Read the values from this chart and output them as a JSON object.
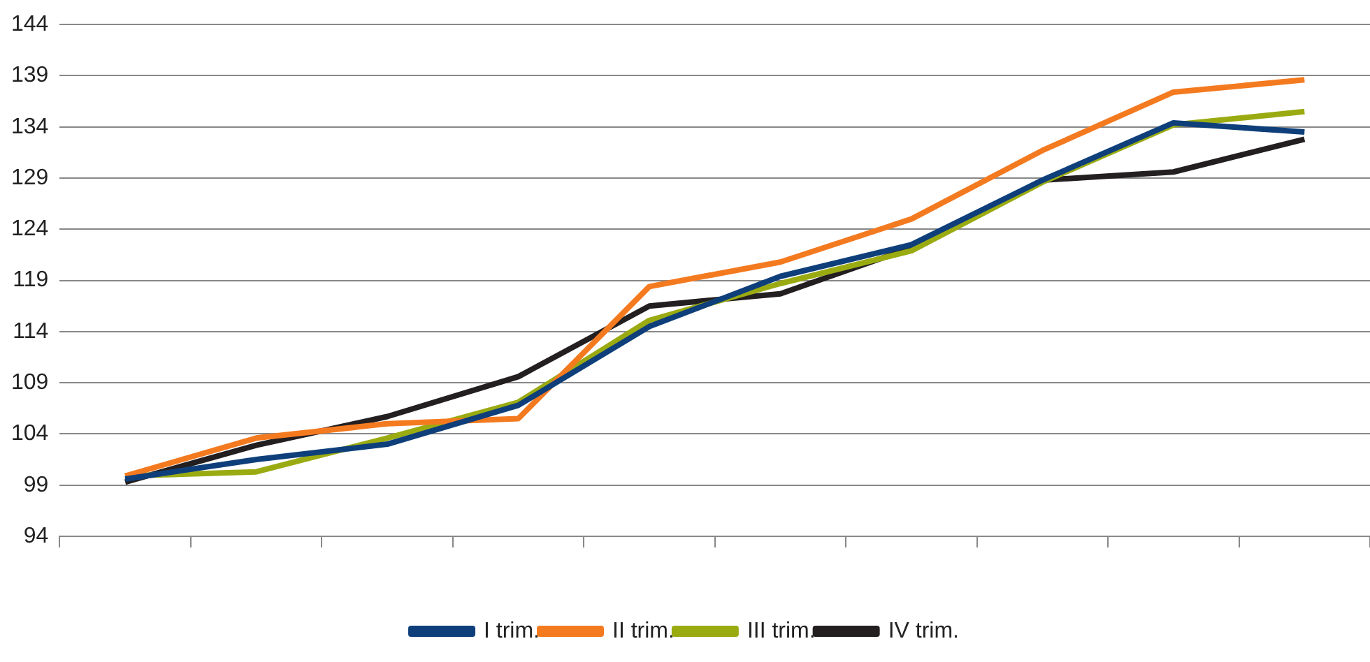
{
  "chart_data": {
    "type": "line",
    "categories": [
      null,
      null,
      null,
      null,
      null,
      null,
      null,
      null,
      null,
      null
    ],
    "series": [
      {
        "name": "I trim.",
        "color": "#0e3f7a",
        "values": [
          99.6,
          101.5,
          103,
          106.8,
          114.5,
          119.4,
          122.5,
          128.8,
          134.4,
          133.5
        ]
      },
      {
        "name": "II trim.",
        "color": "#f47a20",
        "values": [
          99.9,
          103.6,
          105,
          105.5,
          118.4,
          120.8,
          125,
          131.7,
          137.4,
          138.6
        ]
      },
      {
        "name": "III trim.",
        "color": "#9aab12",
        "values": [
          99.9,
          100.3,
          103.6,
          107.1,
          115.1,
          118.7,
          121.9,
          128.6,
          134.2,
          135.5
        ]
      },
      {
        "name": "IV trim.",
        "color": "#231f20",
        "values": [
          99.3,
          102.9,
          105.7,
          109.6,
          116.5,
          117.7,
          122.2,
          128.8,
          129.6,
          132.8
        ]
      }
    ],
    "ylim": [
      94,
      144
    ],
    "yticks": [
      94,
      99,
      104,
      109,
      114,
      119,
      124,
      129,
      134,
      139,
      144
    ],
    "grid": "y",
    "legend": "bottom",
    "marker": "none",
    "line_style": "solid"
  }
}
